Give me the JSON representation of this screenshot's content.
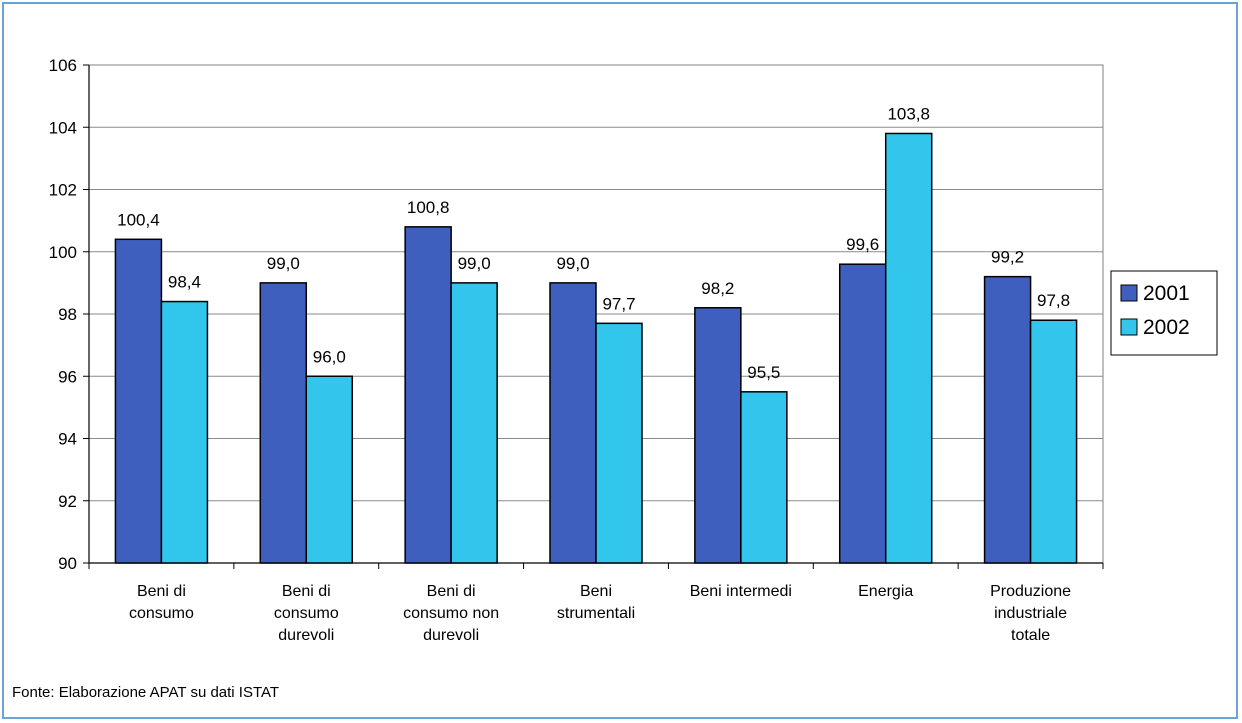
{
  "chart_data": {
    "type": "bar",
    "categories": [
      [
        "Beni di",
        "consumo"
      ],
      [
        "Beni di",
        "consumo",
        "durevoli"
      ],
      [
        "Beni di",
        "consumo non",
        "durevoli"
      ],
      [
        "Beni",
        "strumentali"
      ],
      [
        "Beni intermedi"
      ],
      [
        "Energia"
      ],
      [
        "Produzione",
        "industriale",
        "totale"
      ]
    ],
    "series": [
      {
        "name": "2001",
        "color": "#3f5fbf",
        "values": [
          100.4,
          99.0,
          100.8,
          99.0,
          98.2,
          99.6,
          99.2
        ],
        "labels": [
          "100,4",
          "99,0",
          "100,8",
          "99,0",
          "98,2",
          "99,6",
          "99,2"
        ]
      },
      {
        "name": "2002",
        "color": "#33c6ec",
        "values": [
          98.4,
          96.0,
          99.0,
          97.7,
          95.5,
          103.8,
          97.8
        ],
        "labels": [
          "98,4",
          "96,0",
          "99,0",
          "97,7",
          "95,5",
          "103,8",
          "97,8"
        ]
      }
    ],
    "ylim": [
      90,
      106
    ],
    "yticks": [
      90,
      92,
      94,
      96,
      98,
      100,
      102,
      104,
      106
    ],
    "grid": true,
    "legend_position": "right",
    "title": "",
    "xlabel": "",
    "ylabel": ""
  },
  "source_note": "Fonte: Elaborazione APAT su dati ISTAT"
}
